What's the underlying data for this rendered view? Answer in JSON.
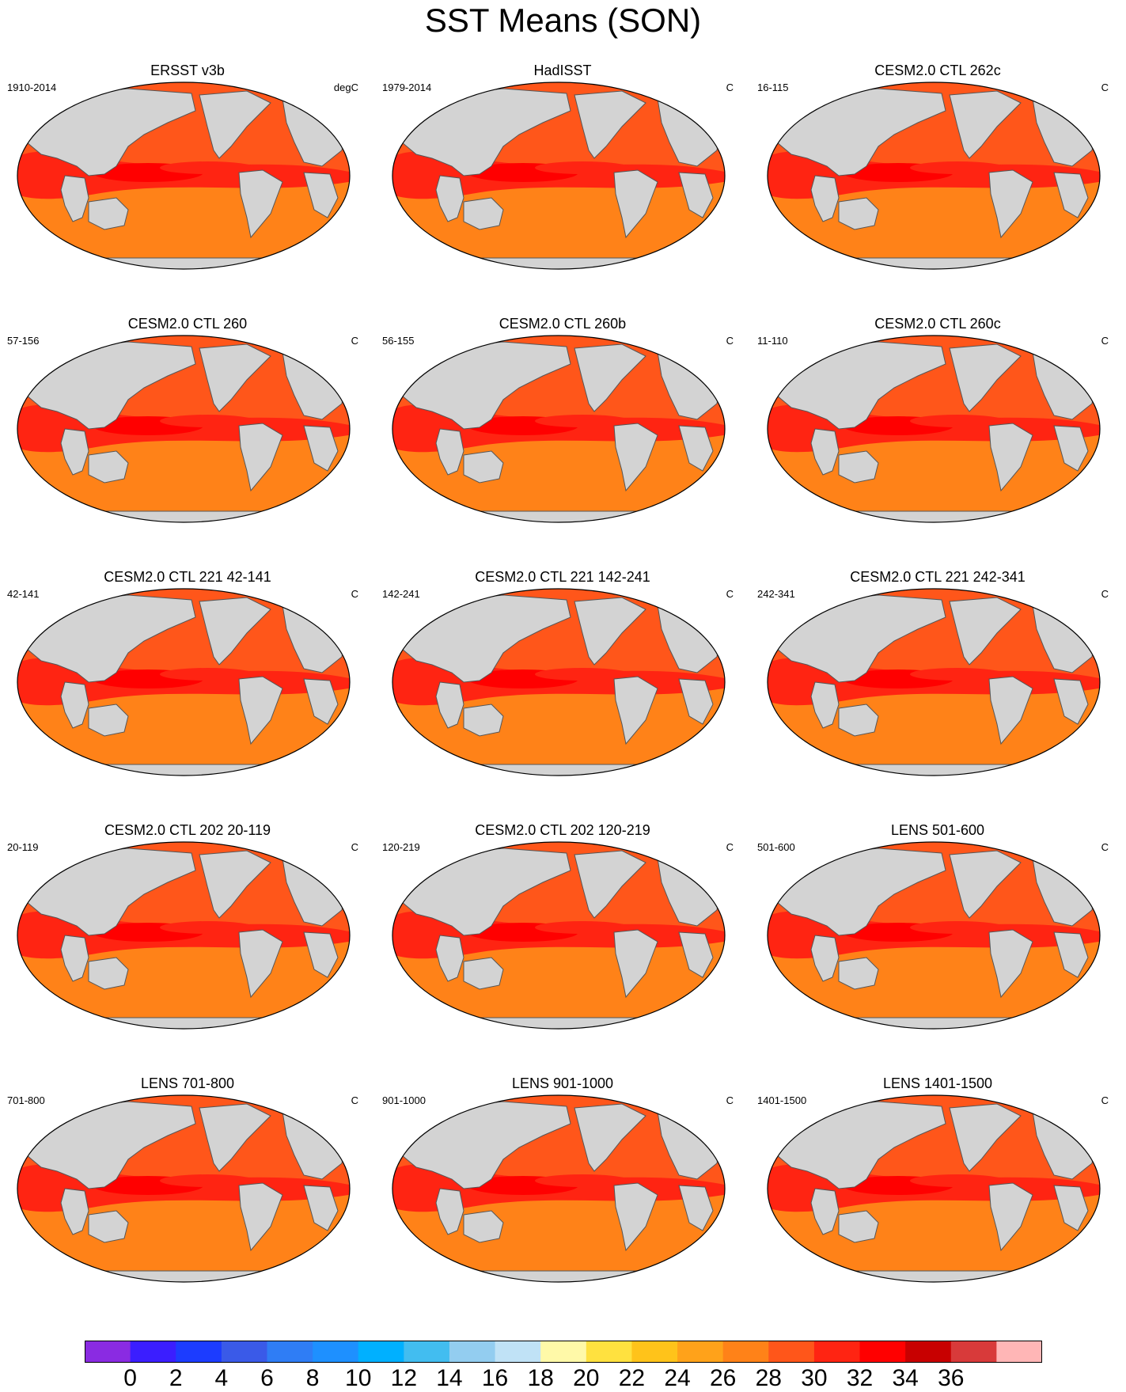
{
  "title": "SST Means (SON)",
  "colors": {
    "land": "#d3d3d3",
    "coast": "#555555",
    "palette": [
      "#8a2be2",
      "#3b1eff",
      "#1c3cff",
      "#3a5ae8",
      "#2f7df5",
      "#1e90ff",
      "#00b0ff",
      "#42bdf0",
      "#93cdf0",
      "#c0e2f6",
      "#fff9a8",
      "#ffe13f",
      "#ffc31a",
      "#ffa21a",
      "#ff8218",
      "#ff561a",
      "#ff2412",
      "#ff0000",
      "#c80000",
      "#d83a3a",
      "#ffb6b6"
    ]
  },
  "panels": [
    {
      "title": "ERSST v3b",
      "years": "1910-2014",
      "units": "degC"
    },
    {
      "title": "HadISST",
      "years": "1979-2014",
      "units": "C"
    },
    {
      "title": "CESM2.0 CTL 262c",
      "years": "16-115",
      "units": "C"
    },
    {
      "title": "CESM2.0 CTL 260",
      "years": "57-156",
      "units": "C"
    },
    {
      "title": "CESM2.0 CTL 260b",
      "years": "56-155",
      "units": "C"
    },
    {
      "title": "CESM2.0 CTL 260c",
      "years": "11-110",
      "units": "C"
    },
    {
      "title": "CESM2.0 CTL 221 42-141",
      "years": "42-141",
      "units": "C"
    },
    {
      "title": "CESM2.0 CTL 221 142-241",
      "years": "142-241",
      "units": "C"
    },
    {
      "title": "CESM2.0 CTL 221 242-341",
      "years": "242-341",
      "units": "C"
    },
    {
      "title": "CESM2.0 CTL 202 20-119",
      "years": "20-119",
      "units": "C"
    },
    {
      "title": "CESM2.0 CTL 202 120-219",
      "years": "120-219",
      "units": "C"
    },
    {
      "title": "LENS 501-600",
      "years": "501-600",
      "units": "C"
    },
    {
      "title": "LENS 701-800",
      "years": "701-800",
      "units": "C"
    },
    {
      "title": "LENS 901-1000",
      "years": "901-1000",
      "units": "C"
    },
    {
      "title": "LENS 1401-1500",
      "years": "1401-1500",
      "units": "C"
    }
  ],
  "colorbar": {
    "labels": [
      "0",
      "2",
      "4",
      "6",
      "8",
      "10",
      "12",
      "14",
      "16",
      "18",
      "20",
      "22",
      "24",
      "26",
      "28",
      "30",
      "32",
      "34",
      "36"
    ]
  }
}
